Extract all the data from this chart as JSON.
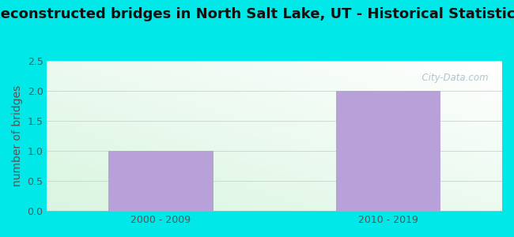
{
  "title": "Reconstructed bridges in North Salt Lake, UT - Historical Statistics",
  "categories": [
    "2000 - 2009",
    "2010 - 2019"
  ],
  "values": [
    1,
    2
  ],
  "bar_color": "#b8a0d8",
  "ylabel": "number of bridges",
  "ylim": [
    0,
    2.5
  ],
  "yticks": [
    0,
    0.5,
    1,
    1.5,
    2,
    2.5
  ],
  "background_outer": "#00e8e8",
  "grid_color": "#d0d8d0",
  "title_fontsize": 13,
  "axis_label_fontsize": 10,
  "tick_fontsize": 9,
  "label_color": "#555555",
  "watermark_text": "  City-Data.com",
  "watermark_color": "#a8bfc8"
}
